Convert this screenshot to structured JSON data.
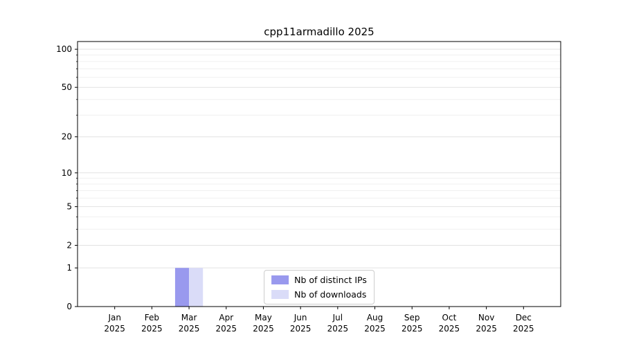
{
  "chart_data": {
    "type": "bar",
    "title": "cpp11armadillo 2025",
    "categories": [
      "Jan 2025",
      "Feb 2025",
      "Mar 2025",
      "Apr 2025",
      "May 2025",
      "Jun 2025",
      "Jul 2025",
      "Aug 2025",
      "Sep 2025",
      "Oct 2025",
      "Nov 2025",
      "Dec 2025"
    ],
    "series": [
      {
        "name": "Nb of distinct IPs",
        "color": "#9999ee",
        "values": [
          0,
          0,
          1,
          0,
          0,
          0,
          0,
          0,
          0,
          0,
          0,
          0
        ]
      },
      {
        "name": "Nb of downloads",
        "color": "#dadcf8",
        "values": [
          0,
          0,
          1,
          0,
          0,
          0,
          0,
          0,
          0,
          0,
          0,
          0
        ]
      }
    ],
    "yticks": [
      0,
      1,
      2,
      5,
      10,
      20,
      50,
      100
    ],
    "y_minor_ticks": [
      3,
      4,
      6,
      7,
      8,
      9,
      30,
      40,
      60,
      70,
      80,
      90
    ],
    "scale": "log1p",
    "ylim": [
      0,
      115
    ],
    "xlabel": "",
    "ylabel": "",
    "grid": true,
    "legend_position": "lower center",
    "colors": {
      "spine": "#000000",
      "grid_major": "#e2e2e2",
      "grid_minor": "#f0f0f0",
      "background": "#ffffff"
    }
  }
}
